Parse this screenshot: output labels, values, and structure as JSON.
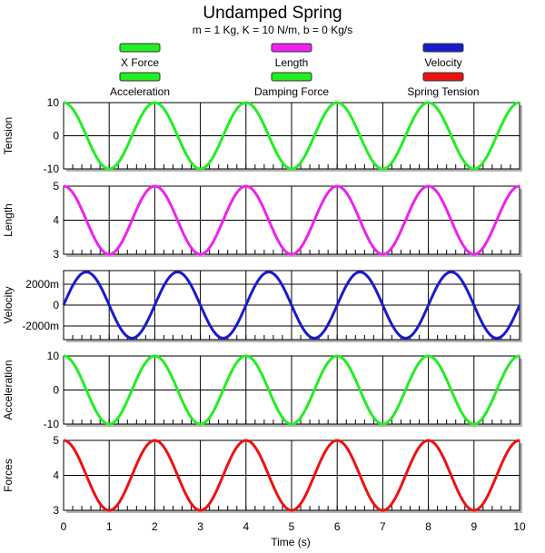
{
  "chart_data": {
    "type": "line",
    "title": "Undamped Spring",
    "subtitle": "m = 1 Kg, K = 10 N/m, b = 0 Kg/s",
    "xlabel": "Time (s)",
    "xlim": [
      0,
      10
    ],
    "xticks": [
      "0",
      "1",
      "2",
      "3",
      "4",
      "5",
      "6",
      "7",
      "8",
      "9",
      "10"
    ],
    "grid": true,
    "legend": [
      {
        "name": "X Force",
        "color": "#22ee22"
      },
      {
        "name": "Length",
        "color": "#ee22ee"
      },
      {
        "name": "Velocity",
        "color": "#1a1acc"
      },
      {
        "name": "Acceleration",
        "color": "#22ee22"
      },
      {
        "name": "Damping Force",
        "color": "#22ee22"
      },
      {
        "name": "Spring Tension",
        "color": "#ee1111"
      }
    ],
    "panels": [
      {
        "ylabel": "Tension",
        "ylim": [
          -10,
          10
        ],
        "yticks": [
          {
            "value": 10,
            "label": "10"
          },
          {
            "value": 0,
            "label": "0"
          },
          {
            "value": -10,
            "label": "-10"
          }
        ],
        "series": [
          {
            "name": "Spring Tension",
            "color": "#22ee22",
            "amplitude": 10,
            "offset": 0,
            "period": 2,
            "phase": "cos"
          }
        ]
      },
      {
        "ylabel": "Length",
        "ylim": [
          3,
          5
        ],
        "yticks": [
          {
            "value": 5,
            "label": "5"
          },
          {
            "value": 4,
            "label": "4"
          },
          {
            "value": 3,
            "label": "3"
          }
        ],
        "series": [
          {
            "name": "Length",
            "color": "#ee22ee",
            "amplitude": 1,
            "offset": 4,
            "period": 2,
            "phase": "cos"
          }
        ]
      },
      {
        "ylabel": "Velocity",
        "ylim": [
          -3300,
          3300
        ],
        "yticks": [
          {
            "value": 2000,
            "label": "2000m"
          },
          {
            "value": 0,
            "label": "0"
          },
          {
            "value": -2000,
            "label": "-2000m"
          }
        ],
        "series": [
          {
            "name": "Velocity",
            "color": "#1a1acc",
            "amplitude": 3162,
            "offset": 0,
            "period": 2,
            "phase": "sin"
          }
        ]
      },
      {
        "ylabel": "Acceleration",
        "ylim": [
          -10,
          10
        ],
        "yticks": [
          {
            "value": 10,
            "label": "10"
          },
          {
            "value": 0,
            "label": "0"
          },
          {
            "value": -10,
            "label": "-10"
          }
        ],
        "series": [
          {
            "name": "Acceleration",
            "color": "#22ee22",
            "amplitude": 10,
            "offset": 0,
            "period": 2,
            "phase": "cos"
          }
        ]
      },
      {
        "ylabel": "Forces",
        "ylim": [
          3,
          5
        ],
        "yticks": [
          {
            "value": 5,
            "label": "5"
          },
          {
            "value": 4,
            "label": "4"
          },
          {
            "value": 3,
            "label": "3"
          }
        ],
        "series": [
          {
            "name": "Spring Tension",
            "color": "#ee1111",
            "amplitude": 1,
            "offset": 4,
            "period": 2,
            "phase": "cos"
          }
        ]
      }
    ]
  }
}
